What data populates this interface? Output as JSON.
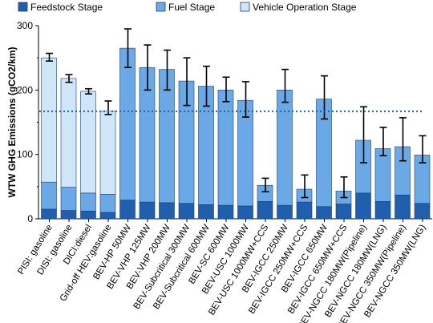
{
  "chart_data": {
    "type": "bar",
    "stacked": true,
    "ylabel": "WTW GHG Emissions (gCO2/km)",
    "ylim": [
      0,
      300
    ],
    "yticks": [
      0,
      100,
      200,
      300
    ],
    "grid": false,
    "legend_position": "top",
    "categories": [
      "PISI: gasoline",
      "DISI: gasoline",
      "DICI:diesel",
      "Grid-off HEV:gasoline",
      "BEV-HP 50MW",
      "BEV-VHP 125MW",
      "BEV-VHP 200MW",
      "BEV-Subcritical 300MW",
      "BEV-Subcritical 600MW",
      "BEV-SC 600MW",
      "BEV-USC 1000MW",
      "BEV-USC 1000MW+CCS",
      "BEV-IGCC 250MW",
      "BEV-IGCC 250MW+CCS",
      "BEV-IGCC 650MW",
      "BEV-IGCC 650MW+CCS",
      "BEV-NGCC 180MW(Pipeline)",
      "BEV-NGCC 180MW(LNG)",
      "BEV-NGCC 350MW(Pipeline)",
      "BEV-NGCC 350MW(LNG)"
    ],
    "series": [
      {
        "name": "Feedstock Stage",
        "color": "#1f5fae",
        "values": [
          15,
          13,
          12,
          10,
          29,
          26,
          25,
          24,
          22,
          21,
          20,
          27,
          21,
          26,
          19,
          23,
          40,
          27,
          37,
          24
        ]
      },
      {
        "name": "Fuel Stage",
        "color": "#6aa9e6",
        "values": [
          42,
          36,
          28,
          28,
          236,
          209,
          207,
          190,
          184,
          179,
          164,
          25,
          179,
          20,
          167,
          20,
          82,
          82,
          75,
          75
        ]
      },
      {
        "name": "Vehicle Operation Stage",
        "color": "#cfe6f8",
        "values": [
          193,
          169,
          158,
          129,
          0,
          0,
          0,
          0,
          0,
          0,
          0,
          0,
          0,
          0,
          0,
          0,
          0,
          0,
          0,
          0
        ]
      }
    ],
    "totals": [
      250,
      218,
      198,
      167,
      265,
      235,
      232,
      214,
      206,
      200,
      184,
      52,
      200,
      46,
      186,
      43,
      122,
      109,
      112,
      99
    ],
    "error_upper": [
      257,
      224,
      202,
      183,
      295,
      270,
      262,
      250,
      237,
      220,
      213,
      63,
      232,
      68,
      222,
      65,
      174,
      142,
      157,
      129
    ],
    "error_lower": [
      245,
      212,
      194,
      162,
      235,
      200,
      200,
      176,
      175,
      182,
      158,
      42,
      181,
      33,
      155,
      33,
      87,
      98,
      90,
      87
    ],
    "reference_line": {
      "y": 167,
      "style": "dotted",
      "color": "#1f5fae"
    }
  }
}
